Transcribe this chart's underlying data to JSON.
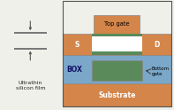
{
  "fig_width": 1.97,
  "fig_height": 1.24,
  "dpi": 100,
  "bg_color": "#f0f0eb",
  "colors": {
    "silicon": "#d4854a",
    "box_layer": "#7ba7c9",
    "gate_oxide": "#5a8a5a",
    "top_gate": "#d4854a",
    "channel": "#ffffff",
    "substrate": "#d4854a",
    "border": "#888888"
  },
  "labels": {
    "S": "S",
    "D": "D",
    "BOX": "BOX",
    "Substrate": "Substrate",
    "Top_gate": "Top gate",
    "Bottom_gate": "Bottom\ngate",
    "ultrathin": "Ultrathin\nsilicon film"
  }
}
